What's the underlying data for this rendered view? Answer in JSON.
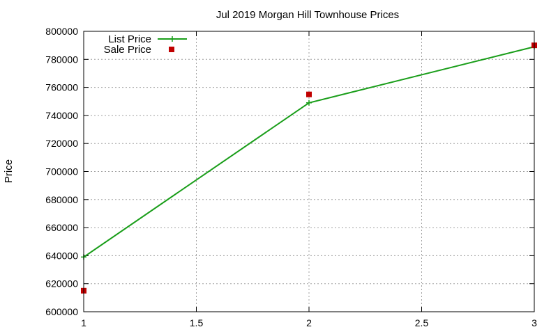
{
  "chart_data": {
    "type": "line",
    "title": "Jul 2019 Morgan Hill Townhouse Prices",
    "xlabel": "",
    "ylabel": "Price",
    "xlim": [
      1,
      3
    ],
    "ylim": [
      600000,
      800000
    ],
    "xticks": [
      "1",
      "1.5",
      "2",
      "2.5",
      "3"
    ],
    "xtick_values": [
      1,
      1.5,
      2,
      2.5,
      3
    ],
    "yticks": [
      "600000",
      "620000",
      "640000",
      "660000",
      "680000",
      "700000",
      "720000",
      "740000",
      "760000",
      "780000",
      "800000"
    ],
    "ytick_values": [
      600000,
      620000,
      640000,
      660000,
      680000,
      700000,
      720000,
      740000,
      760000,
      780000,
      800000
    ],
    "grid": true,
    "legend_position": "top-left",
    "series": [
      {
        "name": "List Price",
        "style": "line-with-plus-markers",
        "color": "#1a9e1a",
        "x": [
          1,
          2,
          3
        ],
        "y": [
          639000,
          749000,
          789000
        ]
      },
      {
        "name": "Sale Price",
        "style": "square-markers",
        "color": "#c00000",
        "x": [
          1,
          2,
          3
        ],
        "y": [
          615000,
          755000,
          790000
        ]
      }
    ]
  }
}
